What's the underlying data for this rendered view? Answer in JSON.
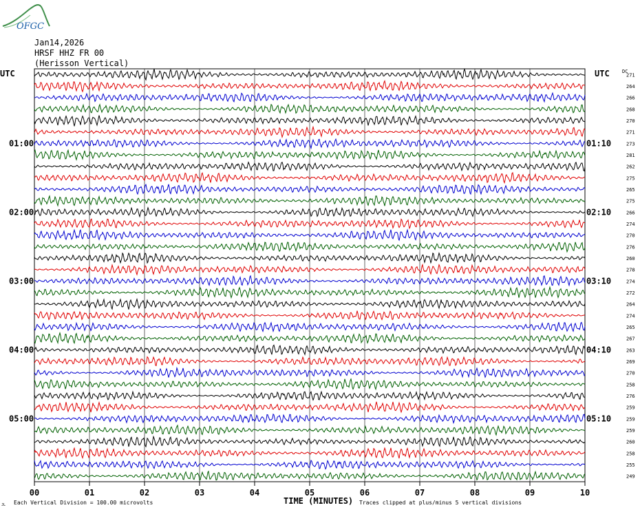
{
  "logo": {
    "text": "OFGC",
    "color": "#3f8f4a"
  },
  "header": {
    "date": "Jan14,2026",
    "station": "HRSF HHZ FR 00",
    "location": "(Herisson Vertical)"
  },
  "axes": {
    "left_label": "UTC",
    "right_label": "UTC",
    "dc_label": "DC",
    "xlabel": "TIME (MINUTES)",
    "x_ticks": [
      "00",
      "01",
      "02",
      "03",
      "04",
      "05",
      "06",
      "07",
      "08",
      "09",
      "10"
    ]
  },
  "left_time_labels": [
    {
      "row": 6,
      "text": "01:00"
    },
    {
      "row": 12,
      "text": "02:00"
    },
    {
      "row": 18,
      "text": "03:00"
    },
    {
      "row": 24,
      "text": "04:00"
    },
    {
      "row": 30,
      "text": "05:00"
    }
  ],
  "right_time_labels": [
    {
      "row": 6,
      "text": "01:10"
    },
    {
      "row": 12,
      "text": "02:10"
    },
    {
      "row": 18,
      "text": "03:10"
    },
    {
      "row": 24,
      "text": "04:10"
    },
    {
      "row": 30,
      "text": "05:10"
    }
  ],
  "footer": {
    "scale_note": "Each Vertical Division =  100.00 microvolts",
    "clip_note": "Traces clipped at plus/minus 5 vertical divisions",
    "mark": "JL"
  },
  "chart_data": {
    "type": "line",
    "x_unit": "minutes",
    "xlim": [
      0,
      10
    ],
    "trace_colors": [
      "#000000",
      "#e00000",
      "#0000d0",
      "#006000"
    ],
    "dc_values": [
      271,
      264,
      266,
      268,
      270,
      271,
      273,
      281,
      262,
      275,
      265,
      275,
      266,
      274,
      270,
      276,
      260,
      278,
      274,
      272,
      264,
      274,
      265,
      267,
      263,
      269,
      270,
      258,
      276,
      259,
      259,
      259,
      260,
      258,
      255,
      249
    ]
  }
}
